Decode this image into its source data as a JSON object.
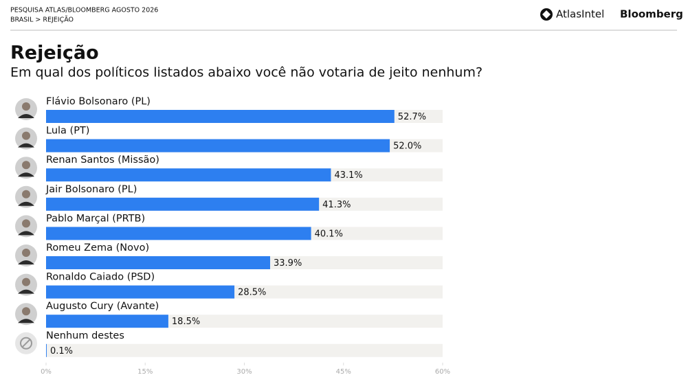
{
  "header": {
    "survey": "PESQUISA ATLAS/BLOOMBERG AGOSTO 2026",
    "breadcrumb": "BRASIL > REJEIÇÃO",
    "logos": [
      "AtlasIntel",
      "Bloomberg"
    ]
  },
  "chart_data": {
    "type": "bar",
    "orientation": "horizontal",
    "title": "Rejeição",
    "subtitle": "Em qual dos políticos listados abaixo você não votaria de jeito nenhum?",
    "categories": [
      "Flávio Bolsonaro (PL)",
      "Lula (PT)",
      "Renan Santos (Missão)",
      "Jair Bolsonaro (PL)",
      "Pablo Marçal (PRTB)",
      "Romeu Zema (Novo)",
      "Ronaldo Caiado (PSD)",
      "Augusto Cury (Avante)",
      "Nenhum destes"
    ],
    "values": [
      52.7,
      52.0,
      43.1,
      41.3,
      40.1,
      33.9,
      28.5,
      18.5,
      0.1
    ],
    "value_labels": [
      "52.7%",
      "52.0%",
      "43.1%",
      "41.3%",
      "40.1%",
      "33.9%",
      "28.5%",
      "18.5%",
      "0.1%"
    ],
    "color": "#2d7ff0",
    "xlim": [
      0,
      60
    ],
    "xticks": [
      {
        "value": 0,
        "label": "0%"
      },
      {
        "value": 15,
        "label": "15%"
      },
      {
        "value": 30,
        "label": "30%"
      },
      {
        "value": 45,
        "label": "45%"
      },
      {
        "value": 60,
        "label": "60%"
      }
    ]
  }
}
